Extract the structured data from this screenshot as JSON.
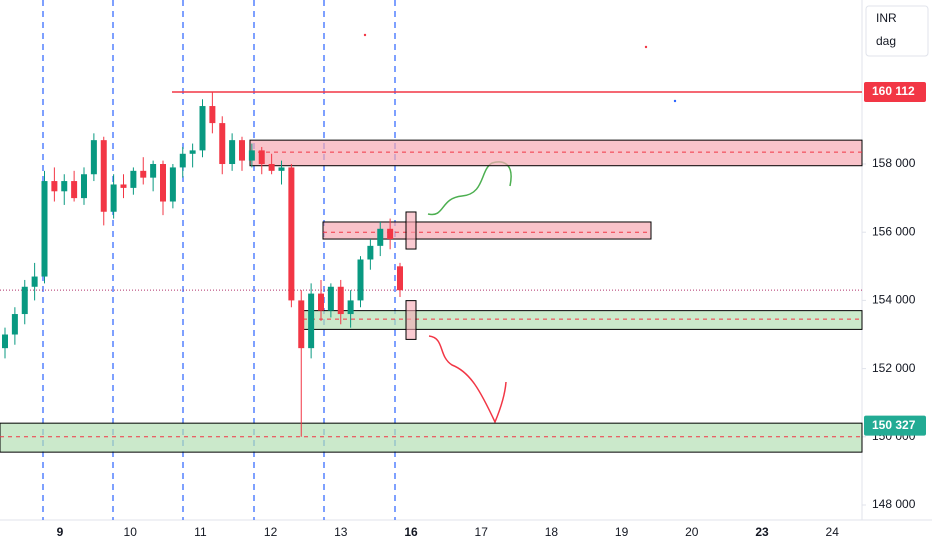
{
  "chart_data": {
    "type": "candlestick",
    "legend": [
      "INR",
      "dag"
    ],
    "categories": [
      "9",
      "10",
      "11",
      "12",
      "13",
      "16",
      "17",
      "18",
      "19",
      "20",
      "23",
      "24"
    ],
    "bold_ticks": [
      0,
      5,
      10
    ],
    "ylim": [
      147560,
      162810
    ],
    "yticks": [
      {
        "value": 148000,
        "label": "148 000"
      },
      {
        "value": 150000,
        "label": "150 000"
      },
      {
        "value": 152000,
        "label": "152 000"
      },
      {
        "value": 154000,
        "label": "154 000"
      },
      {
        "value": 156000,
        "label": "156 000"
      },
      {
        "value": 158000,
        "label": "158 000"
      }
    ],
    "up_color": "#089981",
    "down_color": "#f23645",
    "series": [
      {
        "open": [
          152600,
          153000,
          153600,
          154400,
          154700,
          157500,
          157200,
          157500,
          157000,
          157700,
          158700,
          156600,
          157400,
          157300,
          157800,
          157600,
          158000,
          156900,
          157900,
          158300,
          158400,
          159700,
          159200,
          158000,
          158700,
          158100,
          158400,
          158000,
          157800,
          157900,
          154000,
          152600,
          154200,
          153700,
          154400,
          153600,
          154000,
          155200,
          155600,
          156100,
          155000
        ],
        "high": [
          153200,
          153800,
          154600,
          155100,
          157800,
          157900,
          157700,
          157800,
          157900,
          158900,
          158800,
          157700,
          157700,
          157900,
          158200,
          158100,
          158100,
          158000,
          158500,
          158600,
          159900,
          160100,
          159400,
          158900,
          158800,
          158600,
          158500,
          158300,
          158100,
          158000,
          154300,
          154500,
          154600,
          154500,
          154600,
          154300,
          155300,
          155800,
          156300,
          156400,
          155100
        ],
        "low": [
          152300,
          152700,
          153300,
          154000,
          154500,
          156900,
          156800,
          156900,
          156800,
          157500,
          156200,
          156400,
          157000,
          157100,
          157400,
          157200,
          156500,
          156700,
          157600,
          157900,
          158200,
          158900,
          157700,
          157800,
          157800,
          157900,
          157700,
          157700,
          157400,
          153800,
          150000,
          152300,
          153400,
          153500,
          153300,
          153200,
          153800,
          154900,
          155300,
          155500,
          154100
        ],
        "close": [
          153000,
          153600,
          154400,
          154700,
          157500,
          157200,
          157500,
          157000,
          157700,
          158700,
          156600,
          157400,
          157300,
          157800,
          157600,
          158000,
          156900,
          157900,
          158300,
          158400,
          159700,
          159200,
          158000,
          158700,
          158100,
          158400,
          158000,
          157800,
          157900,
          154000,
          152600,
          154200,
          153700,
          154400,
          153600,
          154000,
          155200,
          155600,
          156100,
          155800,
          154300
        ]
      }
    ],
    "current_price": 154300,
    "zones": [
      {
        "top": 158700,
        "bottom": 157950,
        "mid": 158350,
        "color": "#f7a9b4"
      },
      {
        "top": 156300,
        "bottom": 155800,
        "mid": 156000,
        "color": "#f7a9b4"
      },
      {
        "top": 153700,
        "bottom": 153150,
        "mid": 153450,
        "color": "#b5dfb5"
      },
      {
        "top": 150400,
        "bottom": 149550,
        "mid": 150000,
        "color": "#b5dfb5"
      }
    ],
    "price_labels": [
      {
        "value": 160112,
        "label": "160 112",
        "color": "#f23645",
        "line": true
      },
      {
        "value": 150327,
        "label": "150 327",
        "color": "#22ab94",
        "line": false
      }
    ]
  }
}
